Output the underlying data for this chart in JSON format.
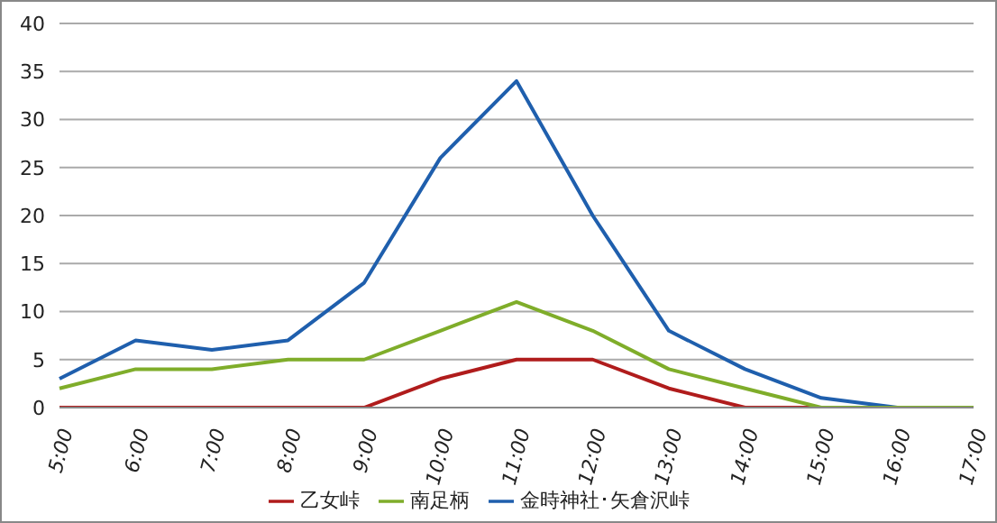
{
  "chart_data": {
    "type": "line",
    "categories": [
      "5:00",
      "6:00",
      "7:00",
      "8:00",
      "9:00",
      "10:00",
      "11:00",
      "12:00",
      "13:00",
      "14:00",
      "15:00",
      "16:00",
      "17:00"
    ],
    "series": [
      {
        "name": "金時神社･矢倉沢峠",
        "color": "#1f5fad",
        "values": [
          3,
          7,
          6,
          7,
          13,
          26,
          34,
          20,
          8,
          4,
          1,
          0,
          null
        ]
      },
      {
        "name": "乙女峠",
        "color": "#b01c1c",
        "values": [
          0,
          0,
          0,
          0,
          0,
          3,
          5,
          5,
          2,
          0,
          0,
          null,
          null
        ]
      },
      {
        "name": "南足柄",
        "color": "#7fad2a",
        "values": [
          2,
          4,
          4,
          5,
          5,
          8,
          11,
          8,
          4,
          2,
          0,
          0,
          0
        ]
      }
    ],
    "ylim": [
      0,
      40
    ],
    "yticks": [
      0,
      5,
      10,
      15,
      20,
      25,
      30,
      35,
      40
    ],
    "grid": "y",
    "legend": "bottom",
    "marker": "none",
    "line_style": "solid"
  }
}
